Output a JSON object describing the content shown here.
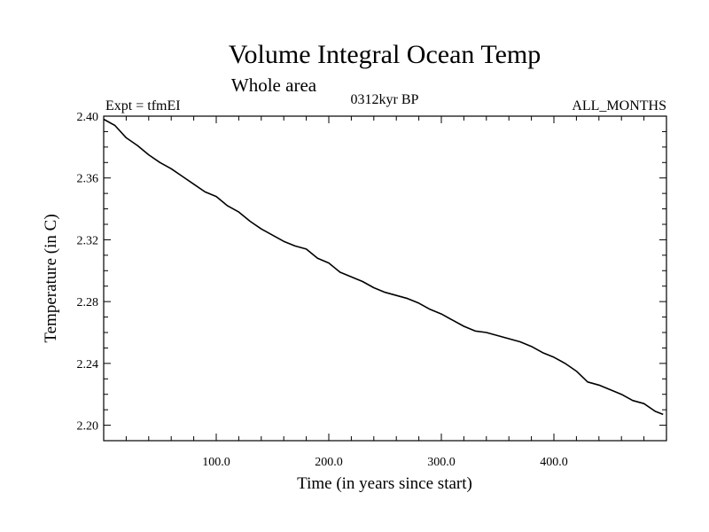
{
  "chart_data": {
    "type": "line",
    "title": "Volume Integral Ocean Temp",
    "subtitle": "Whole area",
    "annotations": {
      "left": "Expt = tfmEI",
      "center": "0312kyr BP",
      "right": "ALL_MONTHS"
    },
    "xlabel": "Time (in years since start)",
    "ylabel": "Temperature (in C)",
    "xlim": [
      0,
      500
    ],
    "ylim": [
      2.19,
      2.4
    ],
    "x_ticks": [
      100,
      200,
      300,
      400
    ],
    "x_tick_labels": [
      "100.0",
      "200.0",
      "300.0",
      "400.0"
    ],
    "y_ticks": [
      2.2,
      2.24,
      2.28,
      2.32,
      2.36,
      2.4
    ],
    "y_tick_labels": [
      "2.20",
      "2.24",
      "2.28",
      "2.32",
      "2.36",
      "2.40"
    ],
    "grid": false,
    "series": [
      {
        "color": "#000000",
        "x": [
          0,
          10,
          20,
          30,
          40,
          50,
          60,
          70,
          80,
          90,
          100,
          110,
          120,
          130,
          140,
          150,
          160,
          170,
          180,
          190,
          200,
          210,
          220,
          230,
          240,
          250,
          260,
          270,
          280,
          290,
          300,
          310,
          320,
          330,
          340,
          350,
          360,
          370,
          380,
          390,
          400,
          410,
          420,
          430,
          440,
          450,
          460,
          470,
          480,
          490,
          497
        ],
        "y": [
          2.398,
          2.394,
          2.386,
          2.381,
          2.375,
          2.37,
          2.366,
          2.361,
          2.356,
          2.351,
          2.348,
          2.342,
          2.338,
          2.332,
          2.327,
          2.323,
          2.319,
          2.316,
          2.314,
          2.308,
          2.305,
          2.299,
          2.296,
          2.293,
          2.289,
          2.286,
          2.284,
          2.282,
          2.279,
          2.275,
          2.272,
          2.268,
          2.264,
          2.261,
          2.26,
          2.258,
          2.256,
          2.254,
          2.251,
          2.247,
          2.244,
          2.24,
          2.235,
          2.228,
          2.226,
          2.223,
          2.22,
          2.216,
          2.214,
          2.209,
          2.207
        ]
      }
    ]
  }
}
